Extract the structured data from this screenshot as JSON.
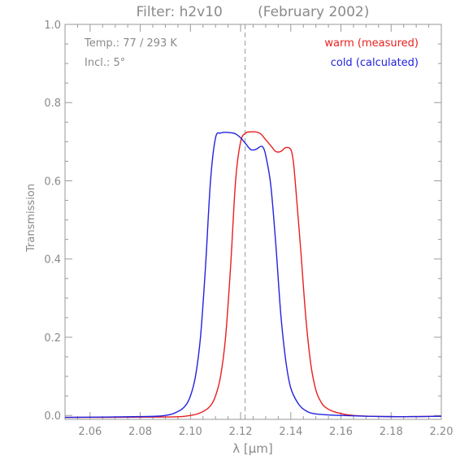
{
  "chart_data": {
    "type": "line",
    "title": "Filter: h2v10        (February 2002)",
    "xlabel": "λ [μm]",
    "ylabel": "Transmission",
    "xlim": [
      2.05,
      2.2
    ],
    "ylim": [
      -0.01,
      1.0
    ],
    "xticks": [
      2.06,
      2.08,
      2.1,
      2.12,
      2.14,
      2.16,
      2.18,
      2.2
    ],
    "yticks": [
      0.0,
      0.2,
      0.4,
      0.6,
      0.8,
      1.0
    ],
    "ytick_labels": [
      "0.0",
      "0.2",
      "0.4",
      "0.6",
      "0.8",
      "1.0"
    ],
    "xtick_labels": [
      "2.06",
      "2.08",
      "2.10",
      "2.12",
      "2.14",
      "2.16",
      "2.18",
      "2.20"
    ],
    "reference_line_x": 2.1218,
    "annotations": [
      "Temp.: 77 / 293 K",
      "Incl.: 5°"
    ],
    "legend_position": "top-right",
    "series": [
      {
        "name": "warm (measured)",
        "color": "#e8201e",
        "x": [
          2.05,
          2.09,
          2.1,
          2.105,
          2.108,
          2.11,
          2.112,
          2.114,
          2.116,
          2.118,
          2.12,
          2.122,
          2.124,
          2.126,
          2.128,
          2.13,
          2.132,
          2.134,
          2.136,
          2.138,
          2.14,
          2.141,
          2.142,
          2.144,
          2.146,
          2.148,
          2.15,
          2.152,
          2.154,
          2.158,
          2.165,
          2.18,
          2.2
        ],
        "y": [
          -0.005,
          -0.004,
          0.0,
          0.01,
          0.025,
          0.05,
          0.1,
          0.2,
          0.38,
          0.6,
          0.7,
          0.722,
          0.725,
          0.725,
          0.72,
          0.705,
          0.69,
          0.675,
          0.675,
          0.685,
          0.68,
          0.65,
          0.58,
          0.42,
          0.25,
          0.13,
          0.065,
          0.035,
          0.02,
          0.008,
          0.0,
          -0.003,
          -0.002
        ]
      },
      {
        "name": "cold (calculated)",
        "color": "#2222e0",
        "x": [
          2.05,
          2.08,
          2.09,
          2.095,
          2.098,
          2.1,
          2.102,
          2.104,
          2.106,
          2.108,
          2.11,
          2.112,
          2.114,
          2.116,
          2.118,
          2.12,
          2.122,
          2.124,
          2.126,
          2.128,
          2.129,
          2.13,
          2.132,
          2.134,
          2.136,
          2.138,
          2.14,
          2.143,
          2.146,
          2.15,
          2.16,
          2.18,
          2.2
        ],
        "y": [
          -0.005,
          -0.003,
          0.0,
          0.01,
          0.025,
          0.05,
          0.1,
          0.2,
          0.38,
          0.6,
          0.71,
          0.722,
          0.724,
          0.723,
          0.72,
          0.71,
          0.695,
          0.68,
          0.68,
          0.688,
          0.685,
          0.665,
          0.59,
          0.44,
          0.26,
          0.14,
          0.07,
          0.03,
          0.012,
          0.004,
          0.0,
          -0.003,
          -0.002
        ]
      }
    ]
  }
}
